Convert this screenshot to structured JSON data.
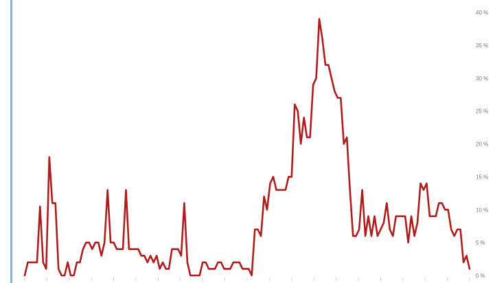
{
  "chart_data": {
    "type": "line",
    "title": "",
    "xlabel": "",
    "ylabel": "",
    "ylim": [
      0,
      40
    ],
    "y_ticks": [
      "0 %",
      "5 %",
      "10 %",
      "15 %",
      "20 %",
      "25 %",
      "30 %",
      "35 %",
      "40 %"
    ],
    "y_axis_position": "right",
    "grid": false,
    "line_color": "#b01c1c",
    "series": [
      {
        "values": [
          0,
          2,
          2,
          2,
          2,
          10.5,
          2,
          1,
          18,
          11,
          11,
          1,
          0,
          0,
          2,
          0,
          0,
          2,
          2,
          4,
          5,
          5,
          4,
          5,
          5,
          3,
          5,
          13,
          5,
          5,
          4,
          4,
          4,
          13,
          4,
          4,
          4,
          4,
          3,
          3,
          2,
          3,
          2,
          3,
          1,
          2,
          1,
          1,
          4,
          4,
          4,
          3,
          11,
          2,
          0,
          0,
          0,
          0,
          2,
          2,
          1,
          1,
          1,
          2,
          2,
          1,
          1,
          1,
          2,
          2,
          2,
          1,
          1,
          1,
          0,
          7,
          7,
          6,
          12,
          10,
          14,
          15,
          13,
          13,
          13,
          13,
          15,
          15,
          26,
          25,
          20,
          24,
          21,
          21,
          29,
          30,
          39,
          36,
          32,
          32,
          30,
          28,
          27,
          27,
          20,
          21,
          13,
          6,
          6,
          7,
          13,
          6,
          9,
          6,
          9,
          6,
          7,
          8,
          11,
          7,
          6,
          9,
          9,
          9,
          9,
          5,
          9,
          6,
          8,
          14,
          13,
          14,
          9,
          9,
          9,
          11,
          11,
          10,
          10,
          7,
          6,
          7,
          7,
          2,
          3,
          1
        ]
      }
    ]
  }
}
